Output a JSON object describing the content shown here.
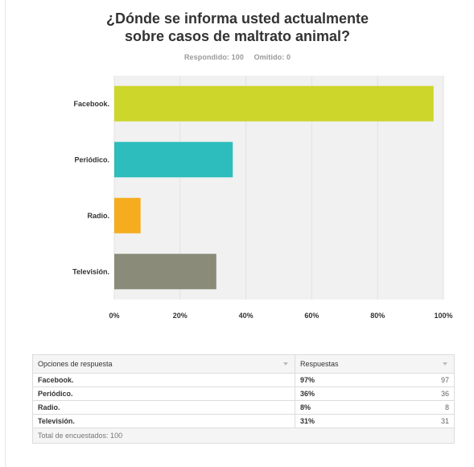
{
  "title_line1": "¿Dónde se informa usted actualmente",
  "title_line2": "sobre casos de maltrato animal?",
  "answered_label": "Respondido: 100",
  "skipped_label": "Omitido: 0",
  "chart_data": {
    "type": "bar",
    "orientation": "horizontal",
    "title": "¿Dónde se informa usted actualmente sobre casos de maltrato animal?",
    "categories": [
      "Facebook.",
      "Periódico.",
      "Radio.",
      "Televisión."
    ],
    "values": [
      97,
      36,
      8,
      31
    ],
    "colors": [
      "#cdd62a",
      "#2dbdbc",
      "#f5ad1f",
      "#8b8b7a"
    ],
    "xlim": [
      0,
      100
    ],
    "xticks": [
      "0%",
      "20%",
      "40%",
      "60%",
      "80%",
      "100%"
    ],
    "xtick_values": [
      0,
      20,
      40,
      60,
      80,
      100
    ],
    "grid": true,
    "plot_background": "#f1f1f1"
  },
  "table": {
    "col_option": "Opciones de respuesta",
    "col_responses": "Respuestas",
    "rows": [
      {
        "label": "Facebook.",
        "pct": "97%",
        "count": "97"
      },
      {
        "label": "Periódico.",
        "pct": "36%",
        "count": "36"
      },
      {
        "label": "Radio.",
        "pct": "8%",
        "count": "8"
      },
      {
        "label": "Televisión.",
        "pct": "31%",
        "count": "31"
      }
    ],
    "total": "Total de encuestados: 100"
  }
}
